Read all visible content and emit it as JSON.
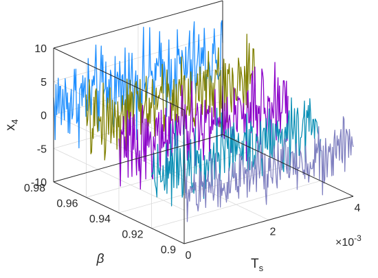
{
  "chart_data": {
    "type": "line",
    "projection": "3d",
    "xlabel": "T",
    "xlabel_sub": "s",
    "ylabel": "β",
    "zlabel": "x",
    "zlabel_sub": "4",
    "x_multiplier": "×10",
    "x_multiplier_exp": "-3",
    "xlim": [
      0,
      4
    ],
    "ylim": [
      0.9,
      0.98
    ],
    "zlim": [
      -10,
      10
    ],
    "x_ticks": [
      0,
      2,
      4
    ],
    "y_ticks": [
      0.9,
      0.92,
      0.94,
      0.96,
      0.98
    ],
    "z_ticks": [
      -10,
      -5,
      0,
      5,
      10
    ],
    "x_tick_labels": [
      "0",
      "2",
      "4"
    ],
    "y_tick_labels": [
      "0.9",
      "0.92",
      "0.94",
      "0.96",
      "0.98"
    ],
    "z_tick_labels": [
      "-10",
      "-5",
      "0",
      "5",
      "10"
    ],
    "grid": true,
    "series": [
      {
        "beta": 0.98,
        "color": "#1f8fff",
        "x_range": [
          0,
          4
        ],
        "z_mean": 1.5,
        "z_amplitude": 3.2
      },
      {
        "beta": 0.96,
        "color": "#808000",
        "x_range": [
          0,
          4
        ],
        "z_mean": 1.0,
        "z_amplitude": 3.0
      },
      {
        "beta": 0.94,
        "color": "#8a00c8",
        "x_range": [
          0,
          4
        ],
        "z_mean": -0.5,
        "z_amplitude": 2.8
      },
      {
        "beta": 0.92,
        "color": "#0a8fb5",
        "x_range": [
          0,
          4
        ],
        "z_mean": -1.5,
        "z_amplitude": 2.6
      },
      {
        "beta": 0.9,
        "color": "#8080c0",
        "x_range": [
          0,
          4
        ],
        "z_mean": -2.5,
        "z_amplitude": 2.3
      }
    ]
  }
}
